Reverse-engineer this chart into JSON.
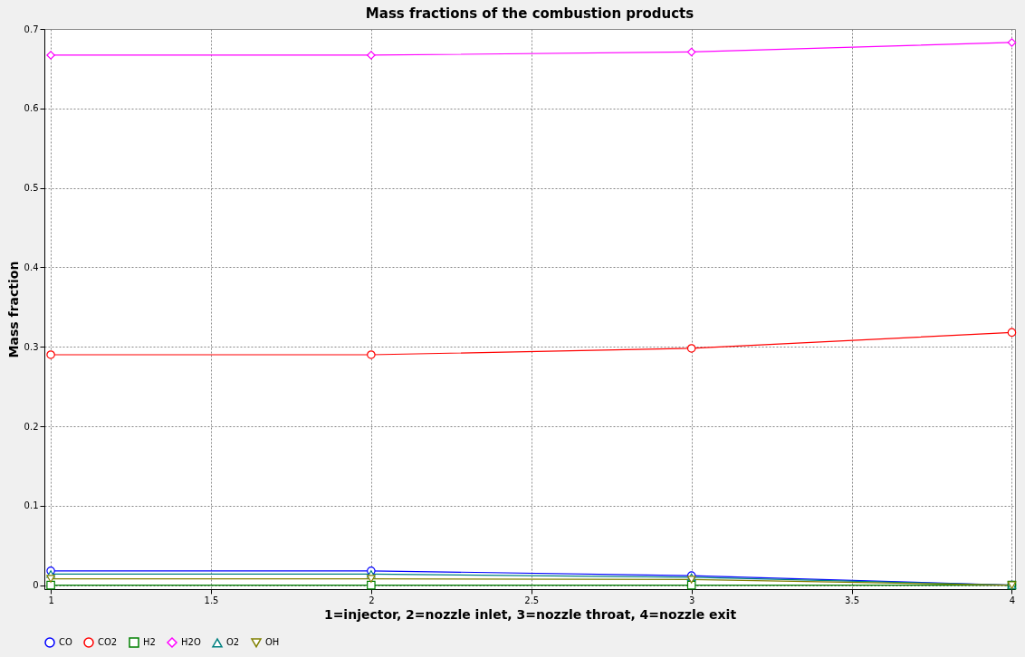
{
  "chart_data": {
    "type": "line",
    "title": "Mass fractions of the combustion products",
    "xlabel": "1=injector, 2=nozzle inlet, 3=nozzle throat, 4=nozzle exit",
    "ylabel": "Mass fraction",
    "x": [
      1,
      2,
      3,
      4
    ],
    "series": [
      {
        "name": "CO",
        "color": "#0000ff",
        "marker": "circle",
        "values": [
          0.018,
          0.018,
          0.012,
          0.0
        ]
      },
      {
        "name": "CO2",
        "color": "#ff0000",
        "marker": "circle",
        "values": [
          0.29,
          0.29,
          0.298,
          0.318
        ]
      },
      {
        "name": "H2",
        "color": "#008000",
        "marker": "square",
        "values": [
          0.0,
          0.0,
          0.0,
          0.0
        ]
      },
      {
        "name": "H2O",
        "color": "#ff00ff",
        "marker": "diamond",
        "values": [
          0.667,
          0.667,
          0.671,
          0.683
        ]
      },
      {
        "name": "O2",
        "color": "#008080",
        "marker": "triangle",
        "values": [
          0.014,
          0.014,
          0.01,
          0.0
        ]
      },
      {
        "name": "OH",
        "color": "#808000",
        "marker": "triangle-down",
        "values": [
          0.008,
          0.008,
          0.007,
          0.0
        ]
      }
    ],
    "xlim": [
      0.98,
      4.01
    ],
    "xticks": [
      1,
      1.5,
      2,
      2.5,
      3,
      3.5,
      4
    ],
    "ylim": [
      -0.005,
      0.7
    ],
    "yticks": [
      0,
      0.1,
      0.2,
      0.3,
      0.4,
      0.5,
      0.6,
      0.7
    ],
    "grid": true,
    "legend": "bottom",
    "line_style": "solid"
  }
}
